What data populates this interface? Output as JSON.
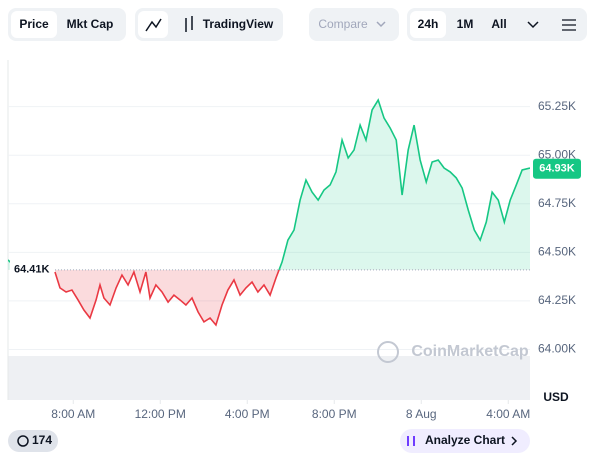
{
  "ui": {
    "tabs": [
      "Price",
      "Mkt Cap"
    ],
    "tool": "TradingView",
    "compare": "Compare",
    "ranges": [
      "24h",
      "1M",
      "All"
    ],
    "watermark": "CoinMarketCap",
    "badge": "174",
    "analyze": "Analyze Chart",
    "currency": "USD"
  },
  "chart_data": {
    "type": "line",
    "x": [
      5.0,
      5.28,
      5.6,
      7.16,
      7.39,
      7.67,
      7.94,
      8.22,
      8.49,
      8.77,
      9.05,
      9.23,
      9.41,
      9.69,
      9.97,
      10.24,
      10.52,
      10.79,
      11.07,
      11.34,
      11.53,
      11.8,
      12.08,
      12.36,
      12.63,
      12.91,
      13.18,
      13.46,
      13.74,
      14.01,
      14.29,
      14.56,
      14.84,
      15.11,
      15.39,
      15.67,
      15.94,
      16.22,
      16.49,
      16.77,
      17.05,
      17.32,
      17.6,
      17.87,
      18.15,
      18.43,
      18.7,
      18.98,
      19.26,
      19.53,
      19.81,
      20.08,
      20.36,
      20.64,
      20.91,
      21.19,
      21.46,
      21.74,
      22.02,
      22.29,
      22.57,
      22.85,
      23.12,
      23.4,
      23.67,
      23.95,
      24.23,
      24.5,
      24.78,
      25.05,
      25.33,
      25.61,
      25.88,
      26.16,
      26.44,
      26.71,
      26.99,
      27.26,
      27.54,
      27.82,
      28.09,
      28.37,
      28.64,
      29.0
    ],
    "series": [
      {
        "color": "#16c784",
        "values": [
          64461,
          64430,
          null,
          64399,
          64317,
          64296,
          64306,
          64255,
          64203,
          64162,
          64255,
          64332,
          64265,
          64229,
          64317,
          64383,
          64332,
          64399,
          64296,
          64399,
          64265,
          64332,
          64296,
          64244,
          64280,
          64255,
          64229,
          64265,
          64193,
          64142,
          64162,
          64126,
          64229,
          64306,
          64358,
          64280,
          64317,
          64347,
          64296,
          64332,
          64280,
          64368,
          64450,
          64563,
          64615,
          64769,
          64872,
          64810,
          64769,
          64821,
          64847,
          64914,
          65078,
          64986,
          65027,
          65155,
          65078,
          65233,
          65284,
          65191,
          65140,
          65078,
          64795,
          65027,
          65155,
          64975,
          64862,
          64965,
          64975,
          64934,
          64914,
          64883,
          64831,
          64718,
          64615,
          64563,
          64656,
          64810,
          64769,
          64656,
          64769,
          64847,
          64924,
          64934
        ]
      }
    ],
    "below_color": "#ea3943",
    "baseline": {
      "value": 64410,
      "label": "64.41K"
    },
    "last_price": {
      "value": 64930,
      "label": "64.93K"
    },
    "xlim": [
      5,
      29
    ],
    "xticks": [
      {
        "value": 8,
        "label": "8:00 AM"
      },
      {
        "value": 12,
        "label": "12:00 PM"
      },
      {
        "value": 16,
        "label": "4:00 PM"
      },
      {
        "value": 20,
        "label": "8:00 PM"
      },
      {
        "value": 24,
        "label": "8 Aug"
      },
      {
        "value": 28,
        "label": "4:00 AM"
      }
    ],
    "ylim": [
      63740,
      65490
    ],
    "yticks": [
      {
        "value": 64000,
        "label": "64.00K"
      },
      {
        "value": 64250,
        "label": "64.25K"
      },
      {
        "value": 64500,
        "label": "64.50K"
      },
      {
        "value": 64750,
        "label": "64.75K"
      },
      {
        "value": 65000,
        "label": "65.00K"
      },
      {
        "value": 65250,
        "label": "65.25K"
      }
    ],
    "grid": true
  }
}
